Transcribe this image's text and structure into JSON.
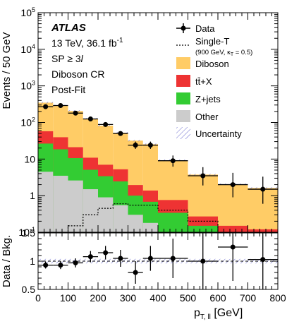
{
  "chart_data": {
    "type": "bar",
    "experiment": "ATLAS",
    "annotations": [
      "13 TeV, 36.1 fb",
      "-1",
      "SP ≥ 3",
      "l",
      "Diboson CR",
      "Post-Fit"
    ],
    "upper": {
      "ylabel": "Events / 50 GeV",
      "yscale": "log",
      "ylim": [
        0.1,
        100000
      ],
      "yticks": [
        {
          "v": 0.1,
          "base": "10",
          "exp": "-1",
          "plain": ""
        },
        {
          "v": 1,
          "base": "",
          "exp": "",
          "plain": "1"
        },
        {
          "v": 10,
          "base": "",
          "exp": "",
          "plain": "10"
        },
        {
          "v": 100,
          "base": "10",
          "exp": "2",
          "plain": ""
        },
        {
          "v": 1000,
          "base": "10",
          "exp": "3",
          "plain": ""
        },
        {
          "v": 10000,
          "base": "10",
          "exp": "4",
          "plain": ""
        },
        {
          "v": 100000,
          "base": "10",
          "exp": "5",
          "plain": ""
        }
      ]
    },
    "bin_edges": [
      0,
      50,
      100,
      150,
      200,
      250,
      300,
      350,
      400,
      500,
      600,
      700,
      800
    ],
    "stack": [
      {
        "name": "Other",
        "color": "#cccccc",
        "values": [
          4.5,
          3.5,
          2.6,
          1.5,
          0.9,
          0.55,
          0.3,
          0.18,
          0.1,
          0.05,
          0.03,
          0.02
        ]
      },
      {
        "name": "Z+jets",
        "color": "#33cc33",
        "values": [
          22,
          15,
          8,
          3.6,
          2.5,
          1.9,
          0.7,
          0.5,
          0.24,
          0.1,
          0.05,
          0.04
        ]
      },
      {
        "name": "tt̄+X",
        "color": "#ee3333",
        "values": [
          31,
          21,
          10.5,
          5.8,
          3.6,
          2.8,
          0.95,
          0.7,
          0.42,
          0.12,
          0.07,
          0.06
        ]
      },
      {
        "name": "Diboson",
        "color": "#ffcc66",
        "values": [
          290,
          250,
          185,
          115,
          75,
          47,
          30,
          24,
          8.5,
          3.5,
          1.9,
          1.5
        ]
      }
    ],
    "signal": {
      "name": "Single-T",
      "sublabel_prefix": "(900 GeV, κ",
      "sublabel_sub": "T",
      "sublabel_suffix": " = 0.5)",
      "values": [
        0.02,
        0.05,
        0.15,
        0.3,
        0.45,
        0.6,
        0.55,
        0.55,
        0.4,
        0.2,
        0.08,
        0.05
      ]
    },
    "data": {
      "name": "Data",
      "x": [
        25,
        75,
        125,
        175,
        225,
        275,
        325,
        375,
        450,
        550,
        650,
        750
      ],
      "y": [
        270,
        290,
        180,
        125,
        88,
        50,
        24,
        24,
        9,
        3.5,
        2,
        1.5
      ],
      "err_lo": [
        16,
        17,
        13,
        11,
        9,
        7,
        5,
        5,
        2.8,
        1.6,
        1.1,
        0.9
      ],
      "err_hi": [
        17,
        18,
        14,
        12,
        10,
        8,
        6,
        6,
        3.5,
        2.5,
        2.2,
        1.8
      ]
    },
    "uncertainty_label": "Uncertainty",
    "ratio": {
      "ylabel": "Data / Bkg.",
      "ylim": [
        0.5,
        1.5
      ],
      "yticks": [
        "0.5",
        "1",
        "1.5"
      ],
      "y": [
        0.93,
        0.93,
        0.97,
        1.08,
        1.15,
        1.05,
        0.8,
        1.05,
        1.05,
        1.0,
        1.25,
        1.03
      ],
      "err_lo": [
        0.06,
        0.07,
        0.08,
        0.1,
        0.12,
        0.15,
        0.2,
        0.22,
        0.35,
        0.5,
        0.6,
        0.6
      ],
      "err_hi": [
        0.06,
        0.07,
        0.08,
        0.1,
        0.12,
        0.15,
        0.2,
        0.22,
        0.35,
        0.5,
        0.6,
        0.6
      ],
      "band": 0.04
    },
    "xaxis": {
      "label_main": "p",
      "label_sub": "T, ll",
      "label_unit": " [GeV]",
      "xlim": [
        0,
        800
      ],
      "ticks": [
        "0",
        "100",
        "200",
        "300",
        "400",
        "500",
        "600",
        "700",
        "800"
      ]
    }
  }
}
